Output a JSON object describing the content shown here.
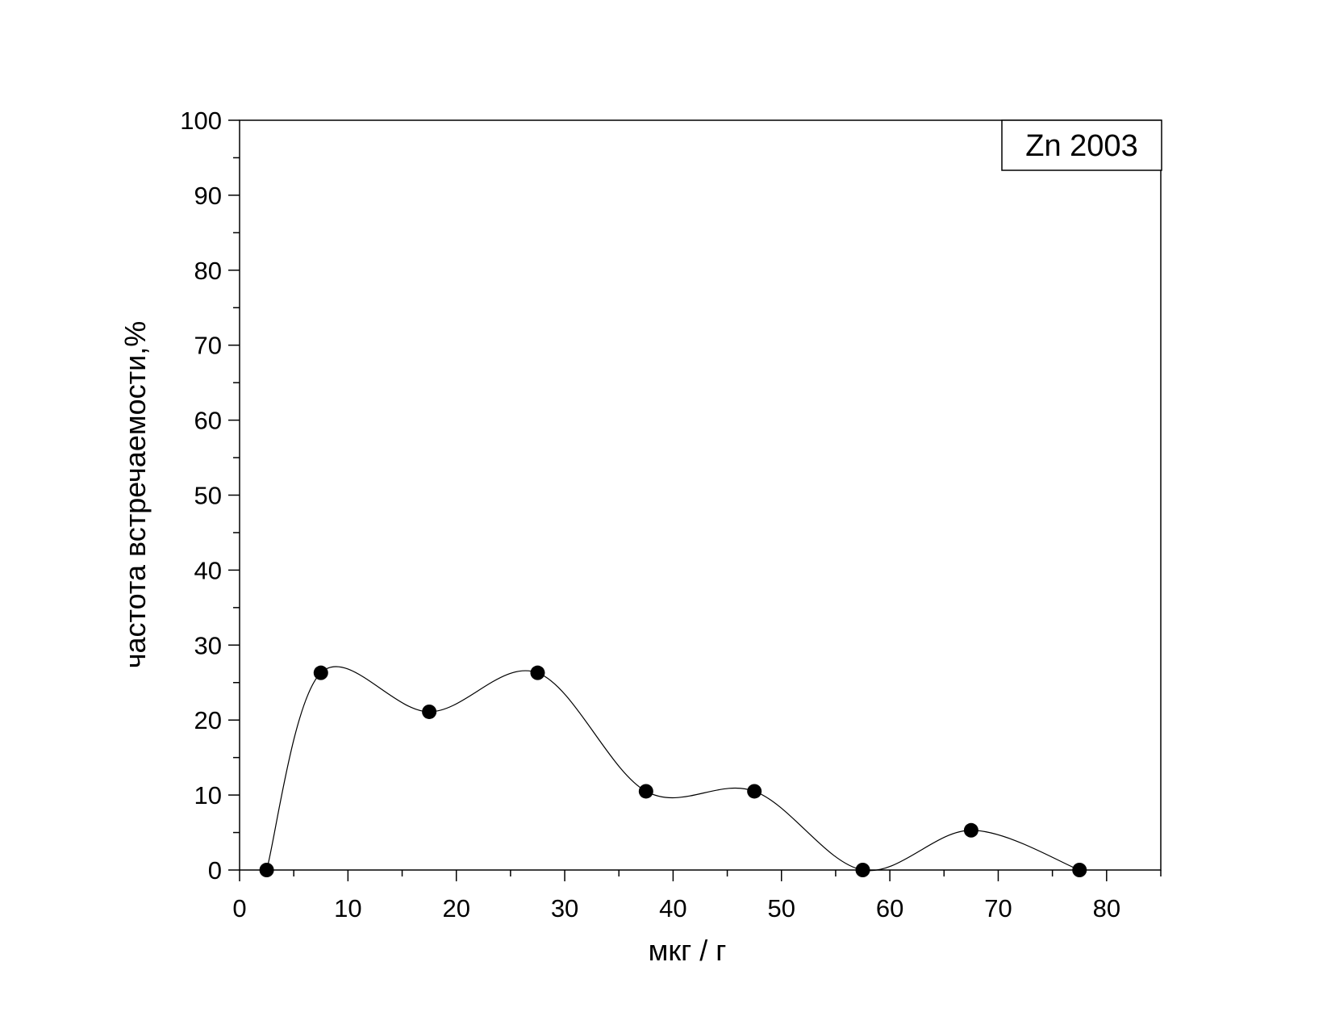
{
  "chart_data": {
    "type": "line",
    "x": [
      2.5,
      7.5,
      17.5,
      27.5,
      37.5,
      47.5,
      57.5,
      67.5,
      77.5
    ],
    "series": [
      {
        "values": [
          0,
          26.3,
          21.1,
          26.3,
          10.5,
          10.5,
          0,
          5.3,
          0
        ],
        "marker": "filled-circle",
        "line": "smooth-spline",
        "color": "#000000"
      }
    ],
    "legend_text": "Zn 2003",
    "legend_position": "top-right",
    "xlabel": "мкг / г",
    "ylabel": "частота встречаемости,%",
    "xlim": [
      0,
      85
    ],
    "ylim": [
      0,
      100
    ],
    "x_ticks": [
      0,
      10,
      20,
      30,
      40,
      50,
      60,
      70,
      80
    ],
    "x_tick_labels": [
      "0",
      "10",
      "20",
      "30",
      "40",
      "50",
      "60",
      "70",
      "80"
    ],
    "y_ticks": [
      0,
      10,
      20,
      30,
      40,
      50,
      60,
      70,
      80,
      90,
      100
    ],
    "y_tick_labels": [
      "0",
      "10",
      "20",
      "30",
      "40",
      "50",
      "60",
      "70",
      "80",
      "90",
      "100"
    ],
    "x_minor_step": 5,
    "y_minor_step": 5,
    "grid": false
  }
}
